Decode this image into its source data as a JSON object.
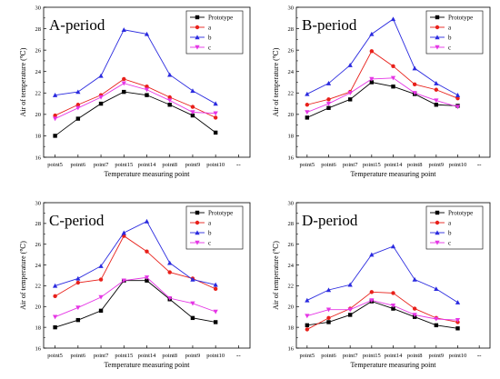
{
  "chart_data": [
    {
      "type": "line",
      "title": "A-period",
      "xlabel": "Temperature measuring point",
      "ylabel": "Air of temperature (℃)",
      "categories": [
        "point5",
        "point6",
        "point7",
        "point15",
        "point14",
        "point8",
        "point9",
        "point10"
      ],
      "extra_tick": "--",
      "ylim": [
        16,
        30
      ],
      "yticks": [
        16,
        18,
        20,
        22,
        24,
        26,
        28,
        30
      ],
      "legend_position": "top-right",
      "series": [
        {
          "name": "Prototype",
          "color": "#000000",
          "marker": "square",
          "values": [
            18.0,
            19.6,
            21.0,
            22.1,
            21.8,
            20.9,
            19.9,
            18.3
          ]
        },
        {
          "name": "a",
          "color": "#e8201a",
          "marker": "circle",
          "values": [
            19.9,
            20.9,
            21.8,
            23.3,
            22.6,
            21.6,
            20.7,
            19.7
          ]
        },
        {
          "name": "b",
          "color": "#2a2adf",
          "marker": "triangle-up",
          "values": [
            21.8,
            22.1,
            23.6,
            27.9,
            27.5,
            23.7,
            22.2,
            21.0
          ]
        },
        {
          "name": "c",
          "color": "#e536e5",
          "marker": "triangle-down",
          "values": [
            19.6,
            20.6,
            21.6,
            22.9,
            22.3,
            21.3,
            20.2,
            20.1
          ]
        }
      ]
    },
    {
      "type": "line",
      "title": "B-period",
      "xlabel": "Temperature measuring point",
      "ylabel": "Air of temperature (℃)",
      "categories": [
        "point5",
        "point6",
        "point7",
        "point15",
        "point14",
        "point8",
        "point9",
        "point10"
      ],
      "extra_tick": "--",
      "ylim": [
        16,
        30
      ],
      "yticks": [
        16,
        18,
        20,
        22,
        24,
        26,
        28,
        30
      ],
      "legend_position": "top-right",
      "series": [
        {
          "name": "Prototype",
          "color": "#000000",
          "marker": "square",
          "values": [
            19.7,
            20.6,
            21.4,
            23.0,
            22.6,
            21.9,
            20.9,
            20.8
          ]
        },
        {
          "name": "a",
          "color": "#e8201a",
          "marker": "circle",
          "values": [
            20.9,
            21.4,
            22.1,
            25.9,
            24.5,
            22.8,
            22.3,
            21.5
          ]
        },
        {
          "name": "b",
          "color": "#2a2adf",
          "marker": "triangle-up",
          "values": [
            21.9,
            22.9,
            24.6,
            27.5,
            28.9,
            24.3,
            22.9,
            21.8
          ]
        },
        {
          "name": "c",
          "color": "#e536e5",
          "marker": "triangle-down",
          "values": [
            20.2,
            21.0,
            22.0,
            23.3,
            23.4,
            22.0,
            21.3,
            20.7
          ]
        }
      ]
    },
    {
      "type": "line",
      "title": "C-period",
      "xlabel": "Temperature measuring point",
      "ylabel": "Air of temperature (℃)",
      "categories": [
        "point5",
        "point6",
        "point7",
        "point15",
        "point14",
        "point8",
        "point9",
        "point10"
      ],
      "extra_tick": "--",
      "ylim": [
        16,
        30
      ],
      "yticks": [
        16,
        18,
        20,
        22,
        24,
        26,
        28,
        30
      ],
      "legend_position": "top-right",
      "series": [
        {
          "name": "Prototype",
          "color": "#000000",
          "marker": "square",
          "values": [
            18.0,
            18.7,
            19.6,
            22.5,
            22.5,
            20.7,
            18.9,
            18.5
          ]
        },
        {
          "name": "a",
          "color": "#e8201a",
          "marker": "circle",
          "values": [
            21.0,
            22.3,
            22.6,
            26.8,
            25.3,
            23.3,
            22.7,
            21.7
          ]
        },
        {
          "name": "b",
          "color": "#2a2adf",
          "marker": "triangle-up",
          "values": [
            22.0,
            22.7,
            23.9,
            27.1,
            28.2,
            24.2,
            22.6,
            22.1
          ]
        },
        {
          "name": "c",
          "color": "#e536e5",
          "marker": "triangle-down",
          "values": [
            19.0,
            19.9,
            20.9,
            22.5,
            22.8,
            20.8,
            20.3,
            19.5
          ]
        }
      ]
    },
    {
      "type": "line",
      "title": "D-period",
      "xlabel": "Temperature measuring point",
      "ylabel": "Air of temperature (℃)",
      "categories": [
        "point5",
        "point6",
        "point7",
        "point15",
        "point14",
        "point8",
        "point9",
        "point10"
      ],
      "extra_tick": "--",
      "ylim": [
        16,
        30
      ],
      "yticks": [
        16,
        18,
        20,
        22,
        24,
        26,
        28,
        30
      ],
      "legend_position": "top-right",
      "series": [
        {
          "name": "Prototype",
          "color": "#000000",
          "marker": "square",
          "values": [
            18.2,
            18.5,
            19.2,
            20.5,
            19.8,
            19.0,
            18.2,
            17.9
          ]
        },
        {
          "name": "a",
          "color": "#e8201a",
          "marker": "circle",
          "values": [
            17.8,
            18.9,
            19.8,
            21.4,
            21.3,
            19.8,
            18.9,
            18.5
          ]
        },
        {
          "name": "b",
          "color": "#2a2adf",
          "marker": "triangle-up",
          "values": [
            20.6,
            21.6,
            22.1,
            25.0,
            25.8,
            22.6,
            21.7,
            20.4
          ]
        },
        {
          "name": "c",
          "color": "#e536e5",
          "marker": "triangle-down",
          "values": [
            19.1,
            19.7,
            19.7,
            20.6,
            20.1,
            19.2,
            18.8,
            18.7
          ]
        }
      ]
    }
  ]
}
